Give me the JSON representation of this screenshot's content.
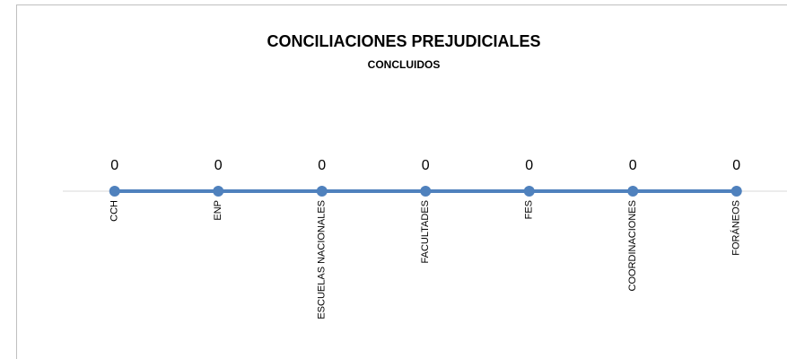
{
  "chart_data": {
    "type": "line",
    "title": "CONCILIACIONES PREJUDICIALES",
    "subtitle": "CONCLUIDOS",
    "categories": [
      "CCH",
      "ENP",
      "ESCUELAS NACIONALES",
      "FACULTADES",
      "FES",
      "COORDINACIONES",
      "FORÁNEOS"
    ],
    "values": [
      0,
      0,
      0,
      0,
      0,
      0,
      0
    ],
    "color": "#4f81bd"
  }
}
